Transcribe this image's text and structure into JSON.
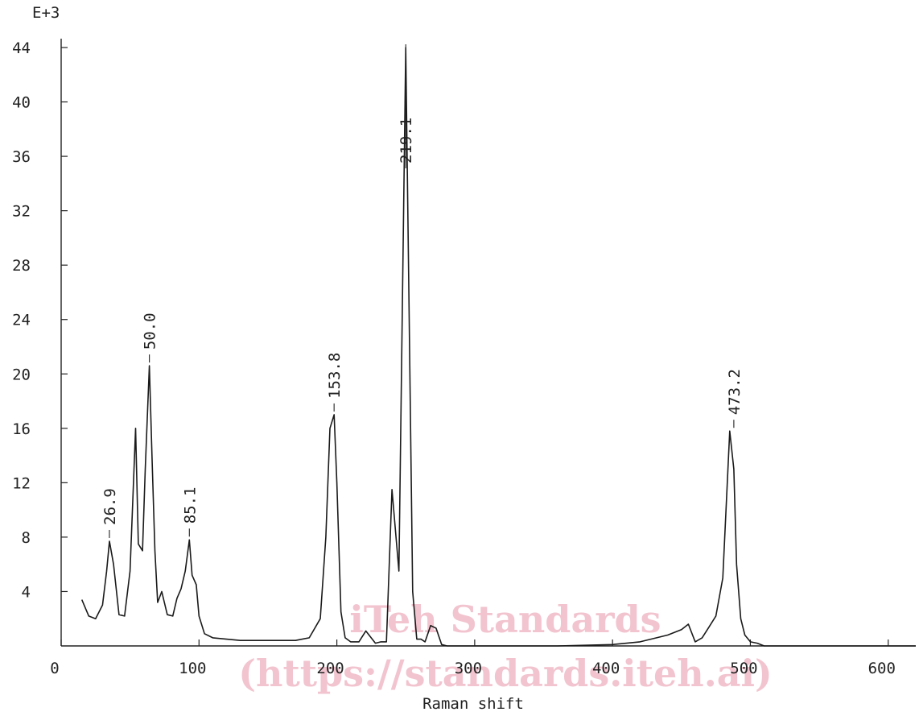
{
  "chart_data": {
    "type": "line",
    "scale_label": "E+3",
    "xlabel": "Raman shift",
    "ylabel": "",
    "xlim": [
      0,
      620
    ],
    "ylim": [
      0,
      44
    ],
    "x_ticks": [
      0,
      100,
      200,
      300,
      400,
      500,
      600
    ],
    "y_ticks": [
      4,
      8,
      12,
      16,
      20,
      24,
      28,
      32,
      36,
      40,
      44
    ],
    "grid": false,
    "series": [
      {
        "x": [
          15,
          20,
          25,
          30,
          33,
          35,
          38,
          42,
          46,
          50,
          54,
          56,
          59,
          61,
          64,
          66,
          68,
          70,
          73,
          77,
          81,
          84,
          87,
          90,
          93,
          95,
          98,
          100,
          104,
          110,
          120,
          130,
          150,
          170,
          180,
          188,
          192,
          195,
          198,
          200,
          203,
          206,
          210,
          216,
          221,
          228,
          232,
          236,
          240,
          245,
          250,
          255,
          258,
          261,
          264,
          268,
          272,
          276,
          280,
          290,
          300,
          320,
          360,
          400,
          420,
          440,
          450,
          455,
          460,
          465,
          470,
          475,
          480,
          485,
          488,
          490,
          493,
          496,
          500,
          505,
          510,
          520,
          540,
          560,
          600,
          620
        ],
        "y": [
          3.4,
          2.2,
          2.0,
          3.0,
          5.5,
          7.7,
          6.0,
          2.3,
          2.2,
          5.5,
          16.0,
          7.5,
          7.0,
          13.0,
          20.6,
          13.5,
          7.0,
          3.2,
          4.0,
          2.3,
          2.2,
          3.5,
          4.2,
          5.5,
          7.8,
          5.2,
          4.5,
          2.2,
          0.9,
          0.6,
          0.5,
          0.4,
          0.4,
          0.4,
          0.6,
          2.0,
          8.0,
          16.0,
          17.0,
          12.0,
          2.5,
          0.6,
          0.3,
          0.3,
          1.1,
          0.2,
          0.3,
          0.3,
          11.5,
          5.5,
          44.0,
          4.0,
          0.5,
          0.5,
          0.3,
          1.5,
          1.3,
          0.1,
          0.0,
          0.0,
          0.0,
          0.0,
          0.0,
          0.1,
          0.3,
          0.8,
          1.2,
          1.6,
          0.3,
          0.6,
          1.4,
          2.2,
          5.0,
          15.8,
          13.0,
          6.0,
          2.0,
          0.8,
          0.3,
          0.2,
          0.0,
          0.0,
          0.0,
          0.0,
          0.0,
          0.0
        ]
      }
    ],
    "peak_labels": [
      {
        "label": "26.9",
        "x": 35.0,
        "y": 7.7
      },
      {
        "label": "50.0",
        "x": 64.0,
        "y": 20.6
      },
      {
        "label": "85.1",
        "x": 93.0,
        "y": 7.8
      },
      {
        "label": "153.8",
        "x": 198.0,
        "y": 17.0
      },
      {
        "label": "219.1",
        "x": 250.0,
        "y": 44.0
      },
      {
        "label": "473.2",
        "x": 488.0,
        "y": 15.8
      }
    ]
  },
  "watermark": {
    "line1": "iTeh Standards",
    "line2": "(https://standards.iteh.ai)"
  }
}
